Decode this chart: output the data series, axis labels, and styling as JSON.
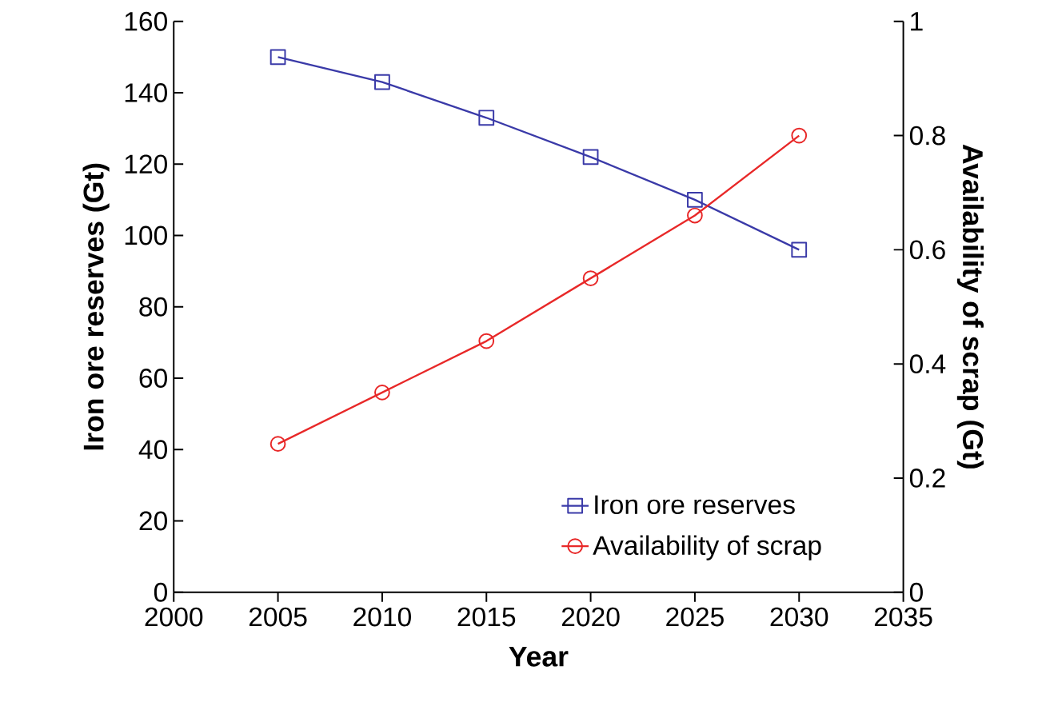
{
  "chart_data": {
    "type": "line",
    "xlabel": "Year",
    "ylabel": "Iron ore reserves (Gt)",
    "y2label": "Availability of scrap (Gt)",
    "x": [
      2005,
      2010,
      2015,
      2020,
      2025,
      2030
    ],
    "series": [
      {
        "name": "Iron ore reserves",
        "color": "#3a3aa8",
        "values": [
          150,
          143,
          133,
          122,
          110,
          96
        ],
        "marker": "square"
      },
      {
        "name": "Availability of scrap",
        "color": "#e82828",
        "values": [
          0.26,
          0.35,
          0.44,
          0.55,
          0.66,
          0.8
        ],
        "marker": "circle",
        "axis": "y2"
      }
    ],
    "xlim": [
      2000,
      2035
    ],
    "xticks": [
      2000,
      2005,
      2010,
      2015,
      2020,
      2025,
      2030,
      2035
    ],
    "ylim": [
      0,
      160
    ],
    "yticks": [
      0,
      20,
      40,
      60,
      80,
      100,
      120,
      140,
      160
    ],
    "y2lim": [
      0,
      1
    ],
    "y2ticks": [
      0,
      0.2,
      0.4,
      0.6,
      0.8,
      1
    ],
    "legend": "bottom right",
    "line_style": "solid"
  }
}
